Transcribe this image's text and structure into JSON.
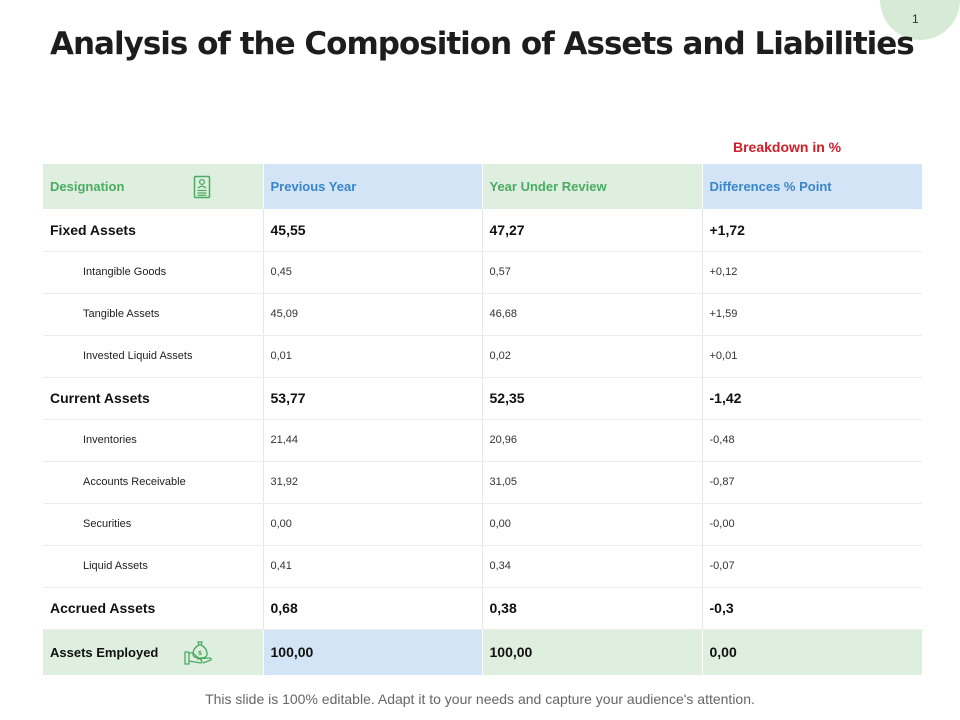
{
  "slide": {
    "page_number": "1",
    "title": "Analysis of the Composition of Assets and Liabilities",
    "breakdown_label": "Breakdown in %",
    "footer": "This slide is 100% editable. Adapt it to your needs and capture your audience's attention."
  },
  "table": {
    "headers": [
      "Designation",
      "Previous Year",
      "Year Under Review",
      "Differences % Point"
    ],
    "rows": [
      {
        "label": "Fixed Assets",
        "prev": "45,55",
        "review": "47,27",
        "diff": "+1,72"
      },
      {
        "label": "Intangible Goods",
        "prev": "0,45",
        "review": "0,57",
        "diff": "+0,12"
      },
      {
        "label": "Tangible Assets",
        "prev": "45,09",
        "review": "46,68",
        "diff": "+1,59"
      },
      {
        "label": "Invested Liquid Assets",
        "prev": "0,01",
        "review": "0,02",
        "diff": "+0,01"
      },
      {
        "label": "Current Assets",
        "prev": "53,77",
        "review": "52,35",
        "diff": "-1,42"
      },
      {
        "label": "Inventories",
        "prev": "21,44",
        "review": "20,96",
        "diff": "-0,48"
      },
      {
        "label": "Accounts Receivable",
        "prev": "31,92",
        "review": "31,05",
        "diff": "-0,87"
      },
      {
        "label": "Securities",
        "prev": "0,00",
        "review": "0,00",
        "diff": "-0,00"
      },
      {
        "label": "Liquid Assets",
        "prev": "0,41",
        "review": "0,34",
        "diff": "-0,07"
      },
      {
        "label": "Accrued Assets",
        "prev": "0,68",
        "review": "0,38",
        "diff": "-0,3"
      }
    ],
    "total": {
      "label": "Assets Employed",
      "prev": "100,00",
      "review": "100,00",
      "diff": "0,00"
    }
  },
  "icons": {
    "designation": "document-person-icon",
    "assets_employed": "hand-money-bag-icon"
  },
  "colors": {
    "green_fill": "#dfefdf",
    "blue_fill": "#d2e4f5",
    "green_text": "#4bab63",
    "blue_text": "#3a86c8",
    "accent_red": "#c9202a",
    "badge": "#d6ead6"
  }
}
